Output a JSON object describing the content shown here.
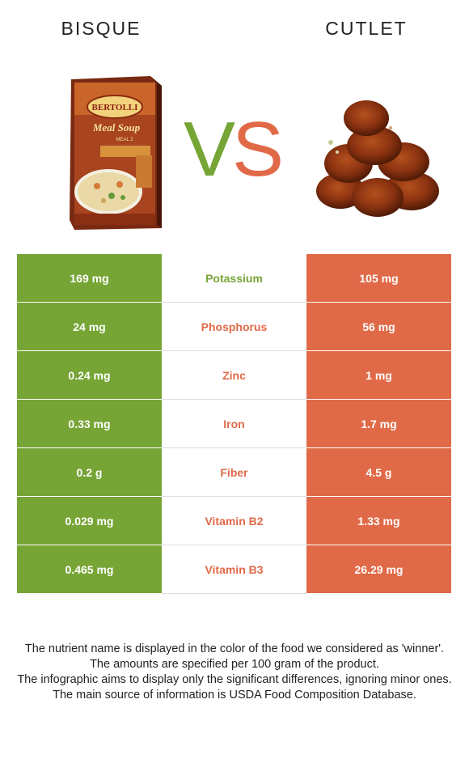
{
  "header": {
    "left_title": "BISQUE",
    "right_title": "CUTLET",
    "vs_v": "V",
    "vs_s": "S"
  },
  "colors": {
    "winner_left": "#76a536",
    "winner_right": "#e06a48"
  },
  "product_box": {
    "brand": "BERTOLLI",
    "line1": "Meal Soup",
    "line2": "MEAL 2"
  },
  "rows": [
    {
      "left": "169 mg",
      "name": "Potassium",
      "right": "105 mg",
      "winner": "left"
    },
    {
      "left": "24 mg",
      "name": "Phosphorus",
      "right": "56 mg",
      "winner": "right"
    },
    {
      "left": "0.24 mg",
      "name": "Zinc",
      "right": "1 mg",
      "winner": "right"
    },
    {
      "left": "0.33 mg",
      "name": "Iron",
      "right": "1.7 mg",
      "winner": "right"
    },
    {
      "left": "0.2 g",
      "name": "Fiber",
      "right": "4.5 g",
      "winner": "right"
    },
    {
      "left": "0.029 mg",
      "name": "Vitamin B2",
      "right": "1.33 mg",
      "winner": "right"
    },
    {
      "left": "0.465 mg",
      "name": "Vitamin B3",
      "right": "26.29 mg",
      "winner": "right"
    }
  ],
  "footnotes": [
    "The nutrient name is displayed in the color of the food we considered as 'winner'.",
    "The amounts are specified per 100 gram of the product.",
    "The infographic aims to display only the significant differences, ignoring minor ones.",
    "The main source of information is USDA Food Composition Database."
  ]
}
